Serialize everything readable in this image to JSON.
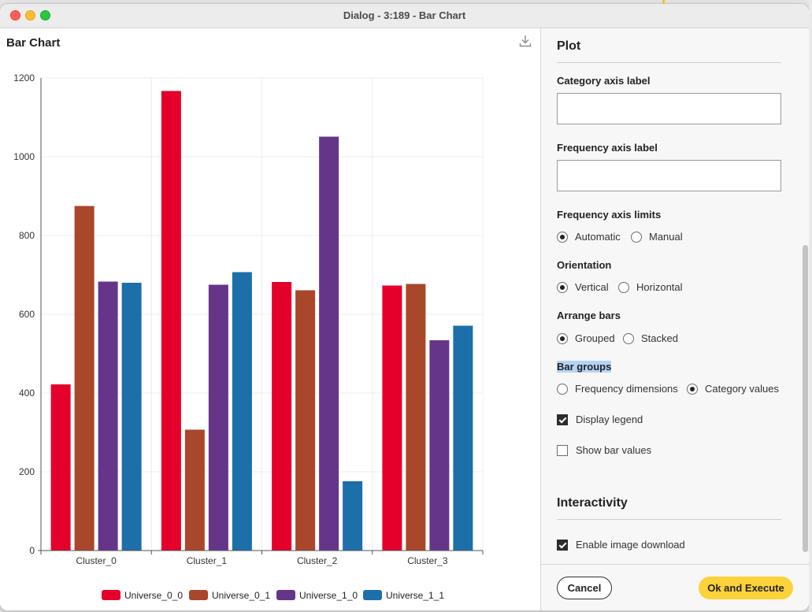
{
  "window": {
    "title": "Dialog - 3:189 - Bar Chart"
  },
  "chart_panel": {
    "title": "Bar Chart",
    "download_icon": "download-icon"
  },
  "chart_data": {
    "type": "bar",
    "categories": [
      "Cluster_0",
      "Cluster_1",
      "Cluster_2",
      "Cluster_3"
    ],
    "series": [
      {
        "name": "Universe_0_0",
        "color": "#e4002b",
        "values": [
          422,
          1167,
          682,
          673
        ]
      },
      {
        "name": "Universe_0_1",
        "color": "#a9472a",
        "values": [
          875,
          307,
          661,
          677
        ]
      },
      {
        "name": "Universe_1_0",
        "color": "#65358a",
        "values": [
          683,
          675,
          1051,
          534
        ]
      },
      {
        "name": "Universe_1_1",
        "color": "#1c6fa9",
        "values": [
          680,
          707,
          176,
          571
        ]
      }
    ],
    "yticks": [
      "0",
      "200",
      "400",
      "600",
      "800",
      "1000",
      "1200"
    ],
    "ylim": [
      0,
      1200
    ],
    "grid": true,
    "legend_position": "bottom"
  },
  "settings": {
    "plot_heading": "Plot",
    "category_axis_label": {
      "label": "Category axis label",
      "value": ""
    },
    "frequency_axis_label": {
      "label": "Frequency axis label",
      "value": ""
    },
    "frequency_axis_limits": {
      "label": "Frequency axis limits",
      "options": [
        "Automatic",
        "Manual"
      ],
      "selected": "Automatic"
    },
    "orientation": {
      "label": "Orientation",
      "options": [
        "Vertical",
        "Horizontal"
      ],
      "selected": "Vertical"
    },
    "arrange_bars": {
      "label": "Arrange bars",
      "options": [
        "Grouped",
        "Stacked"
      ],
      "selected": "Grouped"
    },
    "bar_groups": {
      "label": "Bar groups",
      "options": [
        "Frequency dimensions",
        "Category values"
      ],
      "selected": "Category values"
    },
    "display_legend": {
      "label": "Display legend",
      "checked": true
    },
    "show_bar_values": {
      "label": "Show bar values",
      "checked": false
    },
    "interactivity_heading": "Interactivity",
    "enable_image_download": {
      "label": "Enable image download",
      "checked": true
    }
  },
  "footer": {
    "cancel_label": "Cancel",
    "ok_label": "Ok and Execute"
  }
}
